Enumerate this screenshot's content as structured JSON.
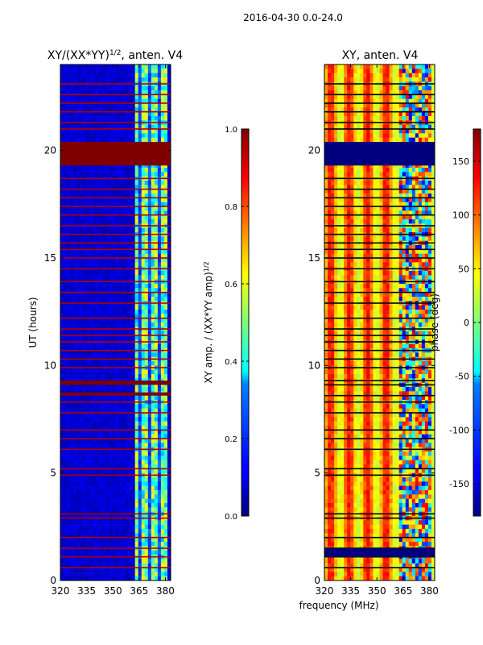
{
  "suptitle": "2016-04-30 0.0-24.0",
  "xlabel": "frequency (MHz)",
  "chart_data": [
    {
      "type": "heatmap",
      "title": "XY/(XX*YY)$^{1/2}$, anten. V4",
      "title_main": "XY/(XX*YY)",
      "title_sup": "1/2",
      "title_tail": ", anten. V4",
      "xlabel": "frequency (MHz)",
      "ylabel": "UT (hours)",
      "xlim": [
        320,
        383
      ],
      "ylim": [
        0,
        24
      ],
      "xticks": [
        "320",
        "335",
        "350",
        "365",
        "380"
      ],
      "yticks": [
        "0",
        "5",
        "10",
        "15",
        "20"
      ],
      "colormap": "jet",
      "colorbar": {
        "label_main": "XY amp. / (XX*YY amp)",
        "label_sup": "1/2",
        "range": [
          0.0,
          1.0
        ],
        "ticks": [
          "0.0",
          "0.2",
          "0.4",
          "0.6",
          "0.8",
          "1.0"
        ]
      },
      "features": {
        "background_value": 0.08,
        "high_band_mhz": [
          362,
          381
        ],
        "saturated_blocks_hours": [
          [
            19.3,
            20.4
          ],
          [
            9.1,
            9.3
          ],
          [
            8.6,
            8.75
          ]
        ],
        "flagged_lines_hours": [
          0.6,
          1.1,
          1.5,
          2.0,
          2.9,
          3.1,
          4.9,
          5.2,
          6.1,
          6.6,
          7.0,
          7.8,
          8.3,
          9.9,
          10.3,
          10.7,
          11.1,
          11.4,
          11.7,
          12.2,
          12.9,
          13.4,
          13.9,
          14.5,
          15.0,
          15.4,
          15.7,
          16.1,
          16.5,
          17.0,
          17.4,
          17.8,
          18.2,
          18.7,
          21.0,
          21.3,
          21.8,
          22.2,
          22.6,
          23.1
        ]
      }
    },
    {
      "type": "heatmap",
      "title": "XY, anten. V4",
      "xlabel": "frequency (MHz)",
      "ylabel": "",
      "xlim": [
        320,
        383
      ],
      "ylim": [
        0,
        24
      ],
      "xticks": [
        "320",
        "335",
        "350",
        "365",
        "380"
      ],
      "yticks": [
        "0",
        "5",
        "10",
        "15",
        "20"
      ],
      "colormap": "jet",
      "colorbar": {
        "label": "phase (deg)",
        "range": [
          -180,
          180
        ],
        "ticks": [
          "-150",
          "-100",
          "-50",
          "0",
          "50",
          "100",
          "150"
        ]
      },
      "features": {
        "background_range_deg": [
          20,
          130
        ],
        "noisy_band_mhz": [
          362,
          381
        ],
        "blue_blocks_hours": [
          [
            19.3,
            20.4
          ],
          [
            1.1,
            1.5
          ]
        ],
        "flagged_lines_hours": [
          0.6,
          1.1,
          1.5,
          2.0,
          2.9,
          3.1,
          4.9,
          5.2,
          6.1,
          6.6,
          7.0,
          7.8,
          8.3,
          8.6,
          9.1,
          9.3,
          9.9,
          10.3,
          10.7,
          11.1,
          11.4,
          11.7,
          12.2,
          12.9,
          13.4,
          13.9,
          14.5,
          15.0,
          15.4,
          15.7,
          16.1,
          16.5,
          17.0,
          17.4,
          17.8,
          18.2,
          18.7,
          21.0,
          21.3,
          21.8,
          22.2,
          22.6,
          23.1
        ]
      }
    }
  ]
}
